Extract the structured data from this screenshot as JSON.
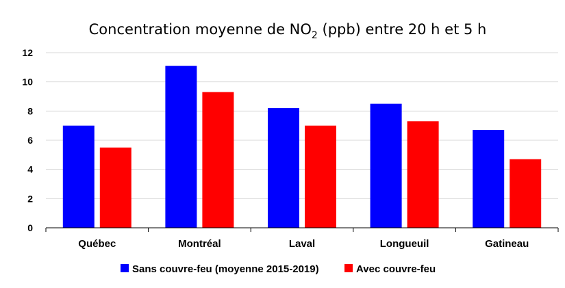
{
  "chart_data": {
    "type": "bar",
    "title_main": "Concentration moyenne de NO",
    "title_subscript": "2",
    "title_rest": " (ppb) entre 20 h et 5 h",
    "categories": [
      "Québec",
      "Montréal",
      "Laval",
      "Longueuil",
      "Gatineau"
    ],
    "series": [
      {
        "name": "Sans couvre-feu (moyenne 2015-2019)",
        "color": "#0000ff",
        "values": [
          7.0,
          11.1,
          8.2,
          8.5,
          6.7
        ]
      },
      {
        "name": "Avec couvre-feu",
        "color": "#ff0000",
        "values": [
          5.5,
          9.3,
          7.0,
          7.3,
          4.7
        ]
      }
    ],
    "ylim": [
      0,
      12
    ],
    "yticks": [
      0,
      2,
      4,
      6,
      8,
      10,
      12
    ],
    "grid": true,
    "legend_position": "bottom"
  }
}
